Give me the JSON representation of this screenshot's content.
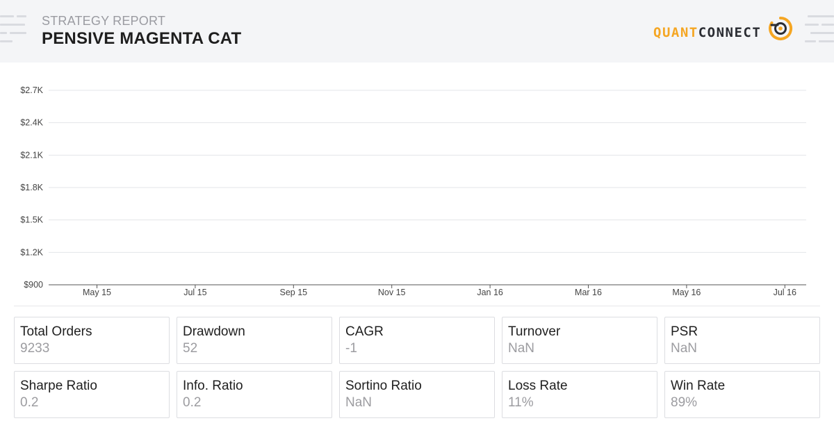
{
  "header": {
    "subtitle": "STRATEGY REPORT",
    "title": "PENSIVE MAGENTA CAT",
    "logo": {
      "part1": "QUANT",
      "part2": "CONNECT"
    }
  },
  "chart_data": {
    "type": "line",
    "title": "",
    "xlabel": "",
    "ylabel": "",
    "x_tick_labels": [
      "May 15",
      "Jul 15",
      "Sep 15",
      "Nov 15",
      "Jan 16",
      "Mar 16",
      "May 16",
      "Jul 16"
    ],
    "y_tick_labels": [
      "$900",
      "$1.2K",
      "$1.5K",
      "$1.8K",
      "$2.1K",
      "$2.4K",
      "$2.7K"
    ],
    "y_ticks": [
      900,
      1200,
      1500,
      1800,
      2100,
      2400,
      2700
    ],
    "ylim": [
      900,
      2700
    ],
    "grid": true,
    "series": []
  },
  "stats": [
    {
      "label": "Total Orders",
      "value": "9233"
    },
    {
      "label": "Drawdown",
      "value": "52"
    },
    {
      "label": "CAGR",
      "value": "-1"
    },
    {
      "label": "Turnover",
      "value": "NaN"
    },
    {
      "label": "PSR",
      "value": "NaN"
    },
    {
      "label": "Sharpe Ratio",
      "value": "0.2"
    },
    {
      "label": "Info. Ratio",
      "value": "0.2"
    },
    {
      "label": "Sortino Ratio",
      "value": "NaN"
    },
    {
      "label": "Loss Rate",
      "value": "11%"
    },
    {
      "label": "Win Rate",
      "value": "89%"
    }
  ],
  "colors": {
    "accent": "#f5a623",
    "grid": "#e3e4e8",
    "axis": "#555555"
  },
  "icons": {
    "logo_mark": "quantconnect-logo-icon"
  }
}
